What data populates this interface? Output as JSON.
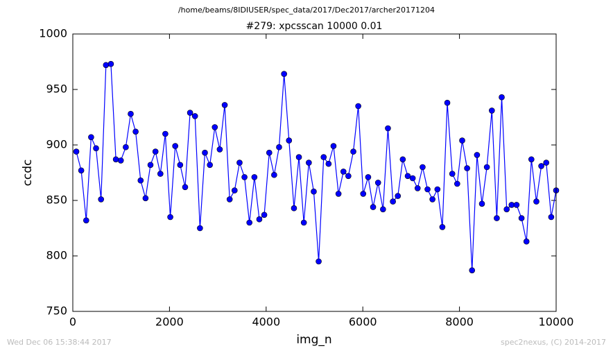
{
  "chart_data": {
    "type": "line",
    "suptitle": "/home/beams/8IDIUSER/spec_data/2017/Dec2017/archer20171204",
    "title": "#279: xpcsscan 10000 0.01",
    "xlabel": "img_n",
    "ylabel": "ccdc",
    "annotations": [
      "Wed Dec 06 15:38:44 2017",
      "spec2nexus, (C) 2014-2017"
    ],
    "x": [
      72,
      174,
      277,
      379,
      481,
      584,
      686,
      788,
      891,
      993,
      1096,
      1198,
      1300,
      1403,
      1505,
      1607,
      1710,
      1812,
      1914,
      2017,
      2119,
      2221,
      2324,
      2426,
      2528,
      2631,
      2733,
      2836,
      2938,
      3040,
      3143,
      3245,
      3347,
      3450,
      3552,
      3654,
      3757,
      3859,
      3961,
      4064,
      4166,
      4268,
      4371,
      4473,
      4576,
      4678,
      4780,
      4883,
      4985,
      5087,
      5190,
      5292,
      5394,
      5497,
      5599,
      5701,
      5804,
      5906,
      6008,
      6111,
      6213,
      6316,
      6418,
      6520,
      6623,
      6725,
      6827,
      6930,
      7032,
      7134,
      7237,
      7339,
      7441,
      7544,
      7646,
      7748,
      7851,
      7953,
      8056,
      8158,
      8260,
      8363,
      8465,
      8567,
      8670,
      8772,
      8874,
      8977,
      9079,
      9181,
      9284,
      9386,
      9488,
      9591,
      9693,
      9795,
      9898,
      10000
    ],
    "series": [
      {
        "name": "ccdc",
        "color": "#0000ff",
        "values": [
          894,
          877,
          832,
          907,
          897,
          851,
          972,
          973,
          887,
          886,
          898,
          928,
          912,
          868,
          852,
          882,
          894,
          874,
          910,
          835,
          899,
          882,
          862,
          929,
          926,
          825,
          893,
          882,
          916,
          896,
          936,
          851,
          859,
          884,
          871,
          830,
          871,
          833,
          837,
          893,
          873,
          898,
          964,
          904,
          843,
          889,
          830,
          884,
          858,
          795,
          889,
          883,
          899,
          856,
          876,
          872,
          894,
          935,
          856,
          871,
          844,
          866,
          842,
          915,
          849,
          854,
          887,
          872,
          870,
          861,
          880,
          860,
          851,
          860,
          826,
          938,
          874,
          865,
          904,
          879,
          787,
          891,
          847,
          880,
          931,
          834,
          943,
          842,
          846,
          846,
          834,
          813,
          887,
          849,
          881,
          884,
          835,
          859
        ]
      }
    ],
    "xlim": [
      0,
      10000
    ],
    "xticks": [
      0,
      2000,
      4000,
      6000,
      8000,
      10000
    ],
    "ylim": [
      750,
      1000
    ],
    "yticks": [
      750,
      800,
      850,
      900,
      950,
      1000
    ],
    "grid": false,
    "marker": "o"
  }
}
